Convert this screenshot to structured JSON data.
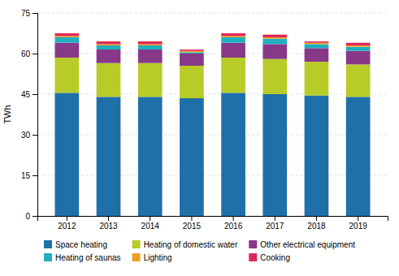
{
  "chart_data": {
    "type": "bar",
    "stacked": true,
    "categories": [
      "2012",
      "2013",
      "2014",
      "2015",
      "2016",
      "2017",
      "2018",
      "2019"
    ],
    "series": [
      {
        "name": "Space heating",
        "color": "#1f6fa8",
        "values": [
          45.5,
          44.0,
          44.0,
          43.5,
          45.5,
          45.0,
          44.5,
          44.0
        ]
      },
      {
        "name": "Heating of domestic water",
        "color": "#b8cc28",
        "values": [
          13.0,
          12.5,
          12.5,
          12.0,
          13.0,
          13.0,
          12.5,
          12.0
        ]
      },
      {
        "name": "Other electrical equipment",
        "color": "#883888",
        "values": [
          5.5,
          5.0,
          5.0,
          4.5,
          5.5,
          5.5,
          5.0,
          5.0
        ]
      },
      {
        "name": "Heating of saunas",
        "color": "#20b0c0",
        "values": [
          2.0,
          1.5,
          1.5,
          0.5,
          2.0,
          2.0,
          1.5,
          1.5
        ]
      },
      {
        "name": "Lighting",
        "color": "#f0a020",
        "values": [
          0.5,
          0.5,
          0.5,
          0.5,
          0.5,
          0.5,
          0.5,
          0.5
        ]
      },
      {
        "name": "Cooking",
        "color": "#e02858",
        "values": [
          1.0,
          1.0,
          1.0,
          0.5,
          1.0,
          1.0,
          0.5,
          1.0
        ]
      }
    ],
    "ylabel": "TWh",
    "ylim": [
      0,
      75
    ],
    "yticks": [
      0,
      15,
      30,
      45,
      60,
      75
    ],
    "grid": true,
    "legend": "bottom"
  }
}
